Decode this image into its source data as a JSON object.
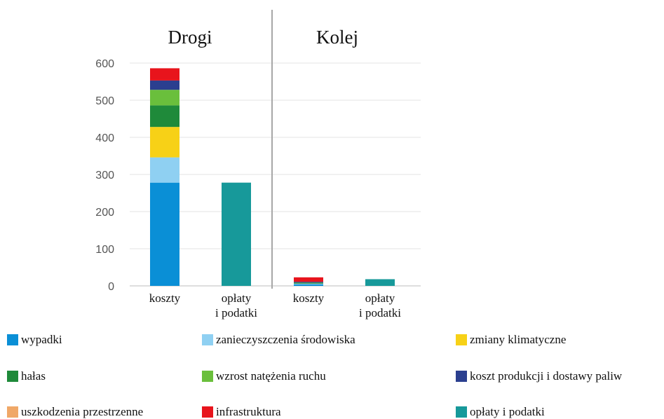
{
  "chart_data": {
    "type": "bar",
    "stacked": true,
    "ylim": [
      0,
      600
    ],
    "yticks": [
      0,
      100,
      200,
      300,
      400,
      500,
      600
    ],
    "grid": true,
    "panels": [
      {
        "title": "Drogi",
        "categories": [
          "koszty",
          "opłaty\ni podatki"
        ]
      },
      {
        "title": "Kolej",
        "categories": [
          "koszty",
          "opłaty\ni podatki"
        ]
      }
    ],
    "categories": [
      "Drogi|koszty",
      "Drogi|opłaty i podatki",
      "Kolej|koszty",
      "Kolej|opłaty i podatki"
    ],
    "series": [
      {
        "name": "wypadki",
        "color": "#0a8fd6",
        "values": [
          278,
          0,
          4,
          0
        ]
      },
      {
        "name": "zanieczyszczenia środowiska",
        "color": "#8fd0f2",
        "values": [
          68,
          0,
          2,
          0
        ]
      },
      {
        "name": "zmiany klimatyczne",
        "color": "#f7d117",
        "values": [
          82,
          0,
          0,
          0
        ]
      },
      {
        "name": "hałas",
        "color": "#1f8a3a",
        "values": [
          58,
          0,
          3,
          0
        ]
      },
      {
        "name": "wzrost natężenia ruchu",
        "color": "#6abf3c",
        "values": [
          42,
          0,
          0,
          0
        ]
      },
      {
        "name": "koszt produkcji i dostawy paliw",
        "color": "#2b3f8f",
        "values": [
          25,
          0,
          2,
          0
        ]
      },
      {
        "name": "uszkodzenia przestrzenne",
        "color": "#f0a868",
        "values": [
          0,
          0,
          0,
          0
        ]
      },
      {
        "name": "infrastruktura",
        "color": "#e8141c",
        "values": [
          33,
          0,
          12,
          0
        ]
      },
      {
        "name": "opłaty i podatki",
        "color": "#17999a",
        "values": [
          0,
          278,
          0,
          18
        ]
      }
    ]
  },
  "legend_items": [
    {
      "label": "wypadki",
      "color": "#0a8fd6"
    },
    {
      "label": "zanieczyszczenia środowiska",
      "color": "#8fd0f2"
    },
    {
      "label": "zmiany klimatyczne",
      "color": "#f7d117"
    },
    {
      "label": "hałas",
      "color": "#1f8a3a"
    },
    {
      "label": "wzrost natężenia ruchu",
      "color": "#6abf3c"
    },
    {
      "label": "koszt produkcji i dostawy paliw",
      "color": "#2b3f8f"
    },
    {
      "label": "uszkodzenia przestrzenne",
      "color": "#f0a868"
    },
    {
      "label": "infrastruktura",
      "color": "#e8141c"
    },
    {
      "label": "opłaty i podatki",
      "color": "#17999a"
    }
  ]
}
